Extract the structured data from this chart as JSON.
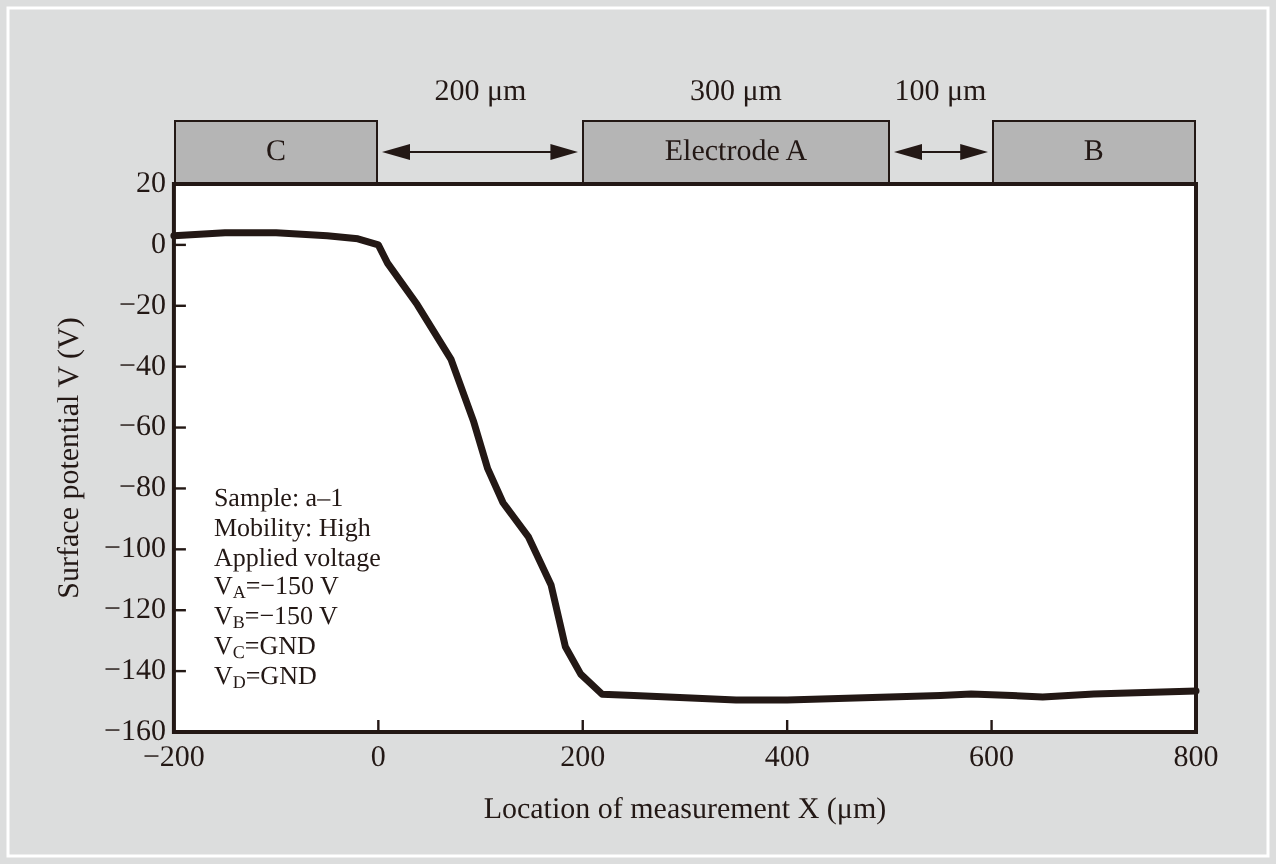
{
  "chart_data": {
    "type": "line",
    "xlabel": "Location of measurement X (μm)",
    "ylabel": "Surface potential V (V)",
    "x": [
      -200,
      -150,
      -100,
      -50,
      -20,
      0,
      9,
      38,
      71,
      93,
      107,
      122,
      147,
      169,
      183,
      198,
      219,
      250,
      306,
      350,
      400,
      450,
      500,
      550,
      580,
      620,
      650,
      700,
      750,
      800
    ],
    "series": [
      {
        "color": "#231815",
        "values": [
          3,
          4,
          4,
          3,
          2,
          0,
          -6,
          -19.6,
          -37.5,
          -57.8,
          -73.5,
          -84.7,
          -96,
          -111.7,
          -132,
          -141,
          -147.6,
          -148,
          -148.8,
          -149.5,
          -149.5,
          -149,
          -148.5,
          -148,
          -147.5,
          -148,
          -148.5,
          -147.5,
          -147,
          -146.5
        ]
      }
    ],
    "xlim": [
      -200,
      800
    ],
    "xticks": [
      {
        "value": -200,
        "label": "−200"
      },
      0,
      200,
      400,
      600,
      800
    ],
    "ylim": [
      -160,
      20
    ],
    "yticks": [
      {
        "value": -160,
        "label": "−160"
      },
      {
        "value": -140,
        "label": "−140"
      },
      {
        "value": -120,
        "label": "−120"
      },
      {
        "value": -100,
        "label": "−100"
      },
      {
        "value": -80,
        "label": "−80"
      },
      {
        "value": -60,
        "label": "−60"
      },
      {
        "value": -40,
        "label": "−40"
      },
      {
        "value": -20,
        "label": "−20"
      },
      0,
      20
    ],
    "annotations": [
      "C",
      "200 μm",
      "Electrode A",
      "300 μm",
      "100 μm",
      "B",
      "Sample: a–1",
      "Mobility: High",
      "Applied voltage",
      "V$_{A}$=−150 V",
      "V$_{B}$=−150 V",
      "V$_{C}$=GND",
      "V$_{D}$=GND"
    ],
    "grid": false,
    "legend": false,
    "marker": "none",
    "line_style": "solid"
  }
}
